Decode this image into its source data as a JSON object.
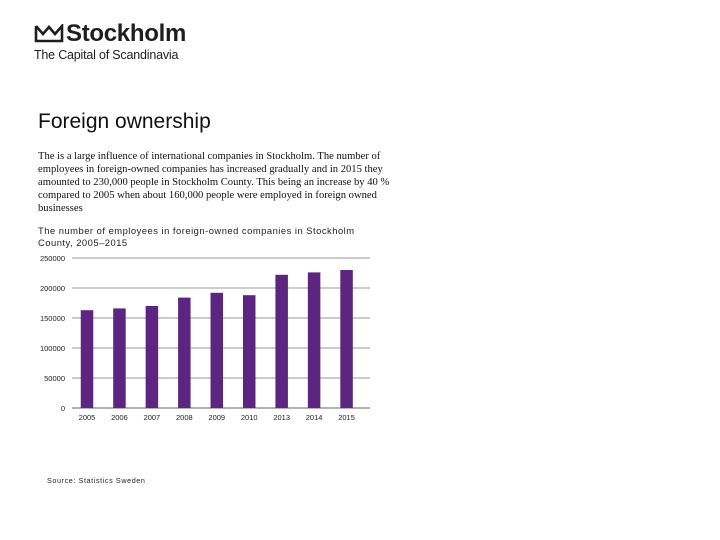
{
  "logo": {
    "name": "Stockholm",
    "tagline": "The Capital of Scandinavia"
  },
  "page": {
    "title": "Foreign ownership",
    "intro": "The is a large influence of international companies in Stockholm. The number of employees in foreign-owned companies has increased gradually and  in 2015 they amounted to 230,000 people in Stockholm County. This being an increase by 40 % compared to 2005  when about 160,000 people were employed in foreign owned businesses",
    "source": "Source: Statistics Sweden"
  },
  "colors": {
    "bar": "#5b2580",
    "gridline": "#9a9a9a",
    "axis": "#666666"
  },
  "chart_data": {
    "type": "bar",
    "title": "The number of employees in foreign-owned companies in Stockholm County, 2005–2015",
    "xlabel": "",
    "ylabel": "",
    "categories": [
      "2005",
      "2006",
      "2007",
      "2008",
      "2009",
      "2010",
      "2013",
      "2014",
      "2015"
    ],
    "values": [
      163000,
      166000,
      170000,
      184000,
      192000,
      188000,
      222000,
      226000,
      230000
    ],
    "ylim": [
      0,
      250000
    ],
    "yticks": [
      "0",
      "50000",
      "100000",
      "150000",
      "200000",
      "250000"
    ],
    "grid": true,
    "legend": false
  }
}
